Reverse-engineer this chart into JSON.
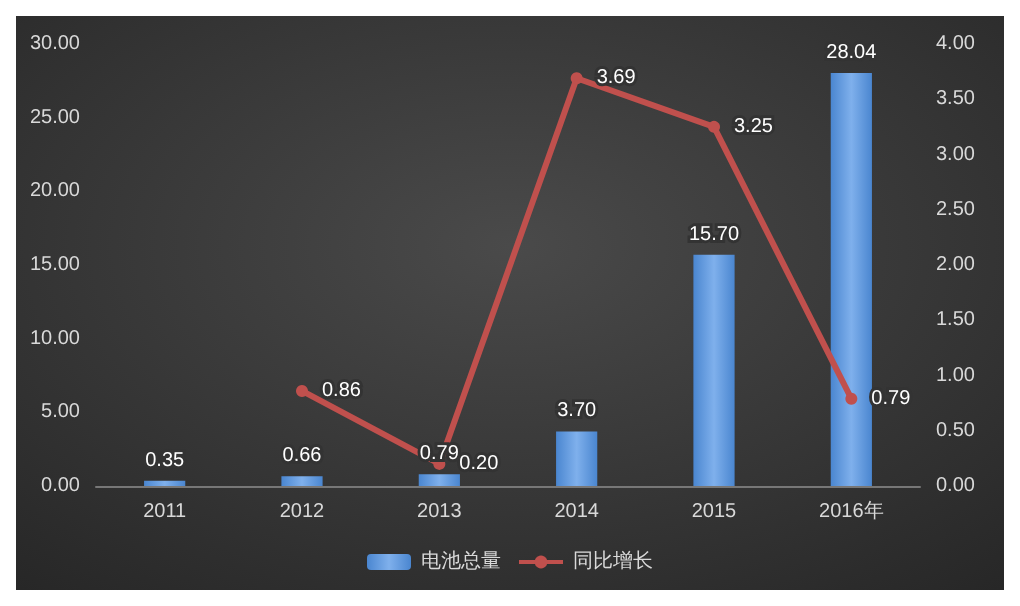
{
  "chart_data": {
    "type": "bar",
    "categories": [
      "2011",
      "2012",
      "2013",
      "2014",
      "2015",
      "2016年"
    ],
    "series": [
      {
        "name": "电池总量",
        "color": "#4a86d0",
        "values": [
          0.35,
          0.66,
          0.79,
          3.7,
          15.7,
          28.04
        ],
        "value_labels": [
          "0.35",
          "0.66",
          "0.79",
          "3.70",
          "15.70",
          "28.04"
        ]
      },
      {
        "name": "同比增长",
        "type": "line",
        "axis": "y2",
        "color": "#c0504d",
        "marker": "circle",
        "values": [
          null,
          0.86,
          0.2,
          3.69,
          3.25,
          0.79
        ],
        "value_labels": [
          null,
          "0.86",
          "0.20",
          "3.69",
          "3.25",
          "0.79"
        ]
      }
    ],
    "ylim": [
      0,
      30
    ],
    "yticks": [
      {
        "value": 0,
        "label": "0.00"
      },
      {
        "value": 5,
        "label": "5.00"
      },
      {
        "value": 10,
        "label": "10.00"
      },
      {
        "value": 15,
        "label": "15.00"
      },
      {
        "value": 20,
        "label": "20.00"
      },
      {
        "value": 25,
        "label": "25.00"
      },
      {
        "value": 30,
        "label": "30.00"
      }
    ],
    "y2lim": [
      0,
      4
    ],
    "y2ticks": [
      {
        "value": 0,
        "label": "0.00"
      },
      {
        "value": 0.5,
        "label": "0.50"
      },
      {
        "value": 1,
        "label": "1.00"
      },
      {
        "value": 1.5,
        "label": "1.50"
      },
      {
        "value": 2,
        "label": "2.00"
      },
      {
        "value": 2.5,
        "label": "2.50"
      },
      {
        "value": 3,
        "label": "3.00"
      },
      {
        "value": 3.5,
        "label": "3.50"
      },
      {
        "value": 4,
        "label": "4.00"
      }
    ],
    "legend": "bottom"
  }
}
